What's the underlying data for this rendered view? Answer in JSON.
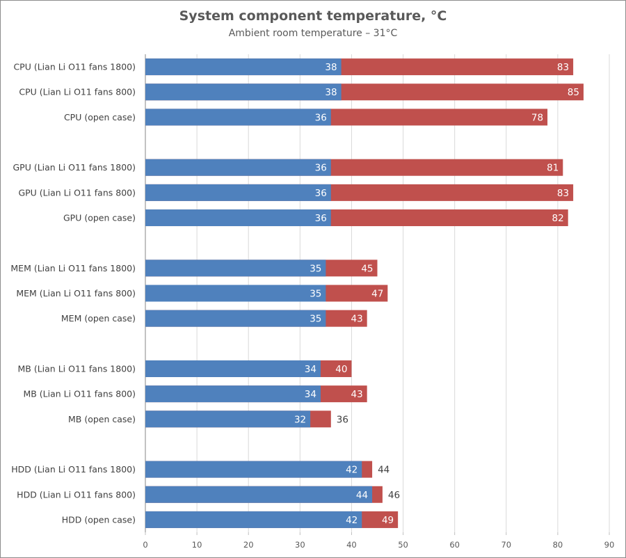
{
  "chart_data": {
    "type": "bar",
    "orientation": "horizontal",
    "stacked": "overlapped",
    "title": "System component temperature, °C",
    "subtitle": "Ambient room temperature – 31°C",
    "xlabel": "",
    "ylabel": "",
    "xlim": [
      0,
      90
    ],
    "xticks": [
      0,
      10,
      20,
      30,
      40,
      50,
      60,
      70,
      80,
      90
    ],
    "grid": "vertical",
    "legend": "none",
    "colors": {
      "idle": "#4f81bd",
      "load": "#c0504d"
    },
    "groups": [
      {
        "name": "CPU",
        "categories": [
          "CPU (Lian Li O11 fans 1800)",
          "CPU (Lian Li O11 fans 800)",
          "CPU (open case)"
        ],
        "idle": [
          38,
          38,
          36
        ],
        "load": [
          83,
          85,
          78
        ]
      },
      {
        "name": "GPU",
        "categories": [
          "GPU (Lian Li O11 fans 1800)",
          "GPU (Lian Li O11 fans 800)",
          "GPU (open case)"
        ],
        "idle": [
          36,
          36,
          36
        ],
        "load": [
          81,
          83,
          82
        ]
      },
      {
        "name": "MEM",
        "categories": [
          "MEM (Lian Li O11 fans 1800)",
          "MEM (Lian Li O11 fans 800)",
          "MEM (open case)"
        ],
        "idle": [
          35,
          35,
          35
        ],
        "load": [
          45,
          47,
          43
        ]
      },
      {
        "name": "MB",
        "categories": [
          "MB (Lian Li O11 fans 1800)",
          "MB (Lian Li O11 fans 800)",
          "MB (open case)"
        ],
        "idle": [
          34,
          34,
          32
        ],
        "load": [
          40,
          43,
          36
        ]
      },
      {
        "name": "HDD",
        "categories": [
          "HDD (Lian Li O11 fans 1800)",
          "HDD (Lian Li O11 fans 800)",
          "HDD (open case)"
        ],
        "idle": [
          42,
          44,
          42
        ],
        "load": [
          44,
          46,
          49
        ]
      }
    ]
  }
}
